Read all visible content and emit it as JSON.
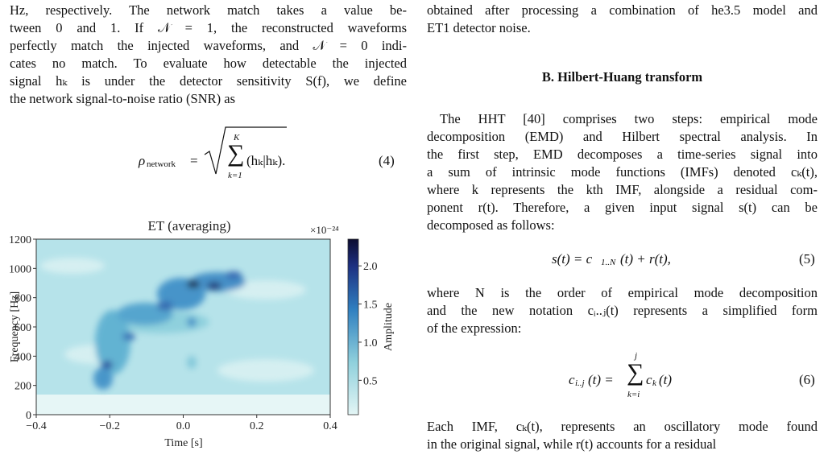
{
  "left_top": {
    "lines": [
      "Hz, respectively. The network match takes a value be-",
      "tween 0 and 1. If 𝒩 = 1, the reconstructed waveforms",
      "perfectly match the injected waveforms, and 𝒩 = 0 indi-",
      "cates no match. To evaluate how detectable the injected",
      "signal hₖ is under the detector sensitivity S(f), we define",
      "the network signal-to-noise ratio (SNR) as"
    ]
  },
  "equation_4": {
    "lhs": "ρ",
    "lhs_sub": "network",
    "equals": "=",
    "sum": "∑",
    "upper": "K",
    "lower": "k=1",
    "body": "(hₖ|hₖ).",
    "number": "(4)"
  },
  "figure": {
    "title": "ET (averaging)",
    "multiplier": "×10⁻²⁴",
    "xlabel": "Time [s]",
    "ylabel": "Frequency [Hz]",
    "colorbar_label": "Amplitude",
    "xlim": [
      -0.4,
      0.4
    ],
    "xticks": [
      {
        "value": -0.4,
        "label": "−0.4"
      },
      {
        "value": -0.2,
        "label": "−0.2"
      },
      {
        "value": 0,
        "label": "0.0"
      },
      0.2,
      0.4
    ],
    "ylim": [
      0,
      1200
    ],
    "yticks": [
      0,
      200,
      400,
      600,
      800,
      1000,
      1200
    ],
    "clim": [
      0.05,
      2.35
    ],
    "cticks": [
      0.5,
      {
        "value": 1,
        "label": "1.0"
      },
      1.5,
      {
        "value": 2,
        "label": "2.0"
      }
    ]
  },
  "right_top": {
    "lines": [
      "obtained after processing a combination of he3.5 model and",
      "ET1 detector noise."
    ]
  },
  "section": {
    "heading": "B.   Hilbert-Huang transform"
  },
  "para_1": {
    "lines": [
      "The HHT [40] comprises two steps: empirical mode",
      "decomposition (EMD) and Hilbert spectral analysis. In",
      "the first step, EMD decomposes a time-series signal into",
      "a sum of intrinsic mode functions (IMFs) denoted cₖ(t),",
      "where k represents the kth IMF, alongside a residual com-",
      "ponent r(t). Therefore, a given input signal s(t) can be",
      "decomposed as follows:"
    ]
  },
  "equation_5": {
    "lhs": "s(t) = c",
    "sub": "1..N",
    "rhs": "(t) + r(t),",
    "number": "(5)"
  },
  "para_2": {
    "lines": [
      "where N is the order of empirical mode decomposition",
      "and the new notation cᵢ..ⱼ(t) represents a simplified form",
      "of the expression:"
    ]
  },
  "equation_6": {
    "lhs": "c",
    "lhs_sub": "i..j",
    "mid": "(t) =",
    "sum": "∑",
    "upper": "j",
    "lower": "k=i",
    "term": "c",
    "term_sub": "k",
    "tail": "(t)",
    "number": "(6)"
  },
  "para_3": {
    "lines": [
      "Each IMF, cₖ(t), represents an oscillatory mode found",
      "in the original signal, while r(t) accounts for a residual"
    ]
  }
}
